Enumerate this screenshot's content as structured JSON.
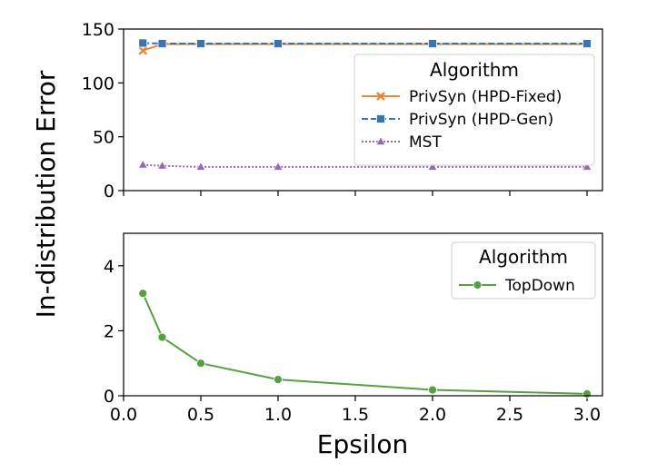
{
  "chart_data": [
    {
      "type": "line",
      "x": [
        0.125,
        0.25,
        0.5,
        1.0,
        2.0,
        3.0
      ],
      "xlim": [
        0,
        3.1
      ],
      "ylim": [
        0,
        150
      ],
      "xticks": [
        0.0,
        0.5,
        1.0,
        1.5,
        2.0,
        2.5,
        3.0
      ],
      "xtick_labels": [
        "0.0",
        "0.5",
        "1.0",
        "1.5",
        "2.0",
        "2.5",
        "3.0"
      ],
      "yticks": [
        0,
        50,
        100,
        150
      ],
      "ytick_labels": [
        "0",
        "50",
        "100",
        "150"
      ],
      "legend": {
        "title": "Algorithm",
        "position": "right"
      },
      "series": [
        {
          "name": "PrivSyn (HPD-Fixed)",
          "color": "#e8873a",
          "dash": "solid",
          "marker": "x-mark",
          "values": [
            130,
            136,
            136,
            136,
            136,
            136
          ]
        },
        {
          "name": "PrivSyn (HPD-Gen)",
          "color": "#3a75af",
          "dash": "dashed",
          "marker": "square",
          "values": [
            137,
            136.5,
            136.5,
            136.5,
            136.5,
            136.5
          ]
        },
        {
          "name": "MST",
          "color": "#9269b4",
          "dash": "dotted",
          "marker": "triangle",
          "values": [
            24,
            23,
            22,
            22,
            22,
            22
          ]
        }
      ]
    },
    {
      "type": "line",
      "x": [
        0.125,
        0.25,
        0.5,
        1.0,
        2.0,
        3.0
      ],
      "xlim": [
        0,
        3.1
      ],
      "ylim": [
        0,
        5
      ],
      "xticks": [
        0.0,
        0.5,
        1.0,
        1.5,
        2.0,
        2.5,
        3.0
      ],
      "xtick_labels": [
        "0.0",
        "0.5",
        "1.0",
        "1.5",
        "2.0",
        "2.5",
        "3.0"
      ],
      "yticks": [
        0,
        2,
        4
      ],
      "ytick_labels": [
        "0",
        "2",
        "4"
      ],
      "legend": {
        "title": "Algorithm",
        "position": "top-right"
      },
      "series": [
        {
          "name": "TopDown",
          "color": "#55a041",
          "dash": "solid",
          "marker": "circle",
          "values": [
            3.15,
            1.8,
            1.0,
            0.5,
            0.18,
            0.06
          ]
        }
      ]
    }
  ],
  "labels": {
    "xlabel": "Epsilon",
    "ylabel": "In-distribution Error"
  }
}
